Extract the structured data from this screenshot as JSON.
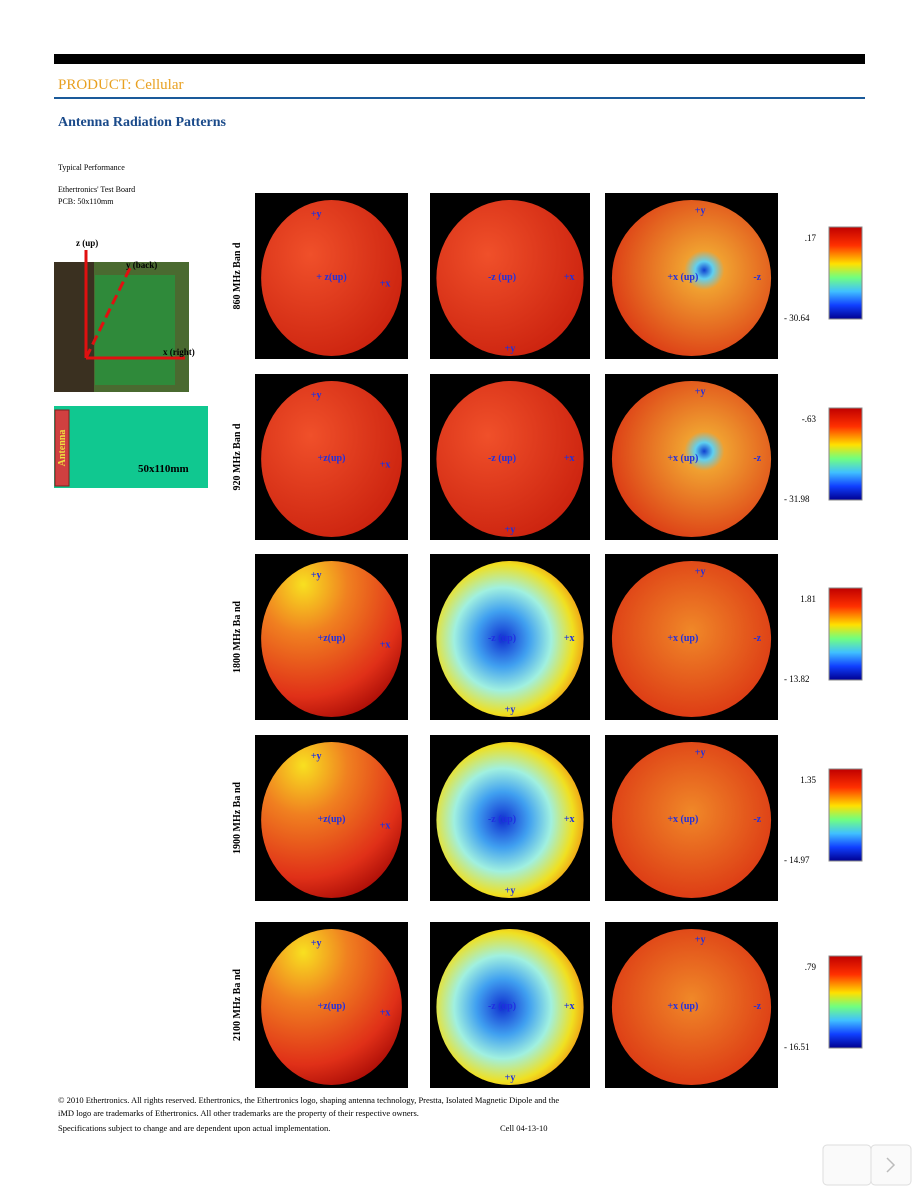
{
  "header": {
    "product": "PRODUCT: Cellular",
    "title": "Antenna Radiation Patterns"
  },
  "intro": {
    "lines": [
      "Typical Performance",
      "Ethertronics' Test Board",
      "PCB: 50x110mm"
    ]
  },
  "photo": {
    "axes": [
      "z (up)",
      "y (back)",
      "x (right)"
    ]
  },
  "board": {
    "antenna": "Antenna",
    "size": "50x110mm"
  },
  "rows": [
    {
      "band": "860 MHz Ban d",
      "max": ".17",
      "min": "- 30.64",
      "views": [
        [
          "+y",
          "+ z(up)",
          "+x"
        ],
        [
          "-z (up)",
          "+x",
          "+y"
        ],
        [
          "+y",
          "+x (up)",
          "-z"
        ]
      ]
    },
    {
      "band": "920 MHz Ban d",
      "max": "-.63",
      "min": "- 31.98",
      "views": [
        [
          "+y",
          "+z(up)",
          "+x"
        ],
        [
          "-z (up)",
          "+x",
          "+y"
        ],
        [
          "+y",
          "+x (up)",
          "-z"
        ]
      ]
    },
    {
      "band": "1800 MHz Ba nd",
      "max": "1.81",
      "min": "- 13.82",
      "views": [
        [
          "+y",
          "+z(up)",
          "+x"
        ],
        [
          "-z (up)",
          "+x",
          "+y"
        ],
        [
          "+y",
          "+x (up)",
          "-z"
        ]
      ]
    },
    {
      "band": "1900 MHz Ba nd",
      "max": "1.35",
      "min": "- 14.97",
      "views": [
        [
          "+y",
          "+z(up)",
          "+x"
        ],
        [
          "-z (up)",
          "+x",
          "+y"
        ],
        [
          "+y",
          "+x (up)",
          "-z"
        ]
      ]
    },
    {
      "band": "2100 MHz Ba nd",
      "max": ".79",
      "min": "- 16.51",
      "views": [
        [
          "+y",
          "+z(up)",
          "+x"
        ],
        [
          "-z (up)",
          "+x",
          "+y"
        ],
        [
          "+y",
          "+x (up)",
          "-z"
        ]
      ]
    }
  ],
  "footer": {
    "lines": [
      "© 2010 Ethertronics. All rights reserved. Ethertronics, the Ethertronics logo, shaping antenna technology, Prestta, Isolated Magnetic Dipole and the",
      "iMD logo are trademarks of Ethertronics.  All other trademarks are the property of their respective owners.",
      "Specifications subject to change and are dependent upon actual implementation."
    ],
    "code": "Cell 04-13-10"
  }
}
